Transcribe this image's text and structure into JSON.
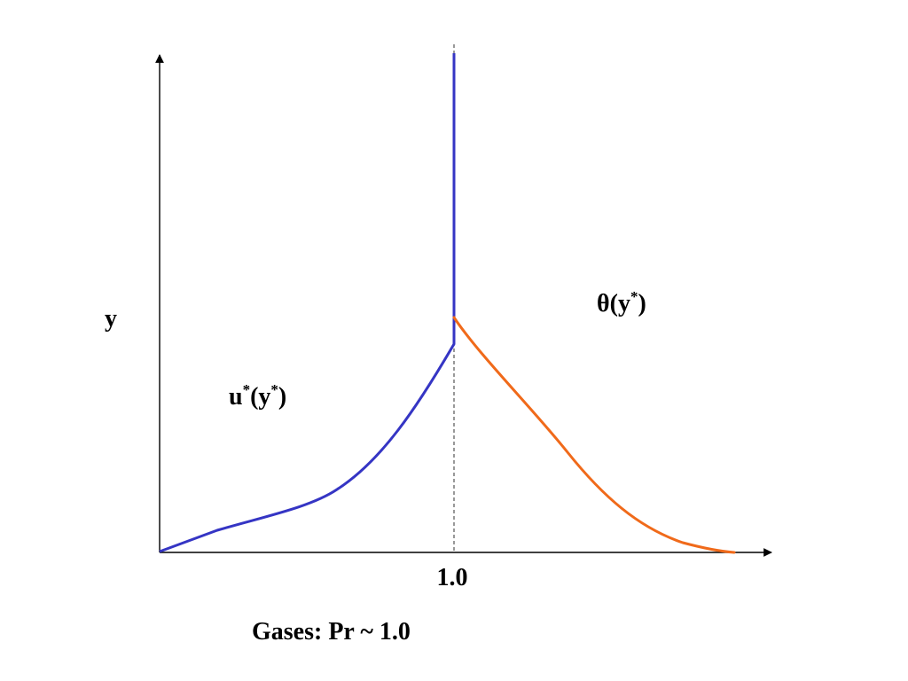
{
  "diagram": {
    "y_axis_label": "y",
    "x_tick_label": "1.0",
    "caption": "Gases: Pr ~ 1.0",
    "velocity_label": {
      "main": "u",
      "sup1": "*",
      "open": "(y",
      "sup2": "*",
      "close": ")"
    },
    "temperature_label": {
      "main": "θ(y",
      "sup": "*",
      "close": ")"
    },
    "colors": {
      "velocity": "#3535c4",
      "temperature": "#f06a1a",
      "axes": "#000000",
      "guide": "#555555"
    }
  }
}
